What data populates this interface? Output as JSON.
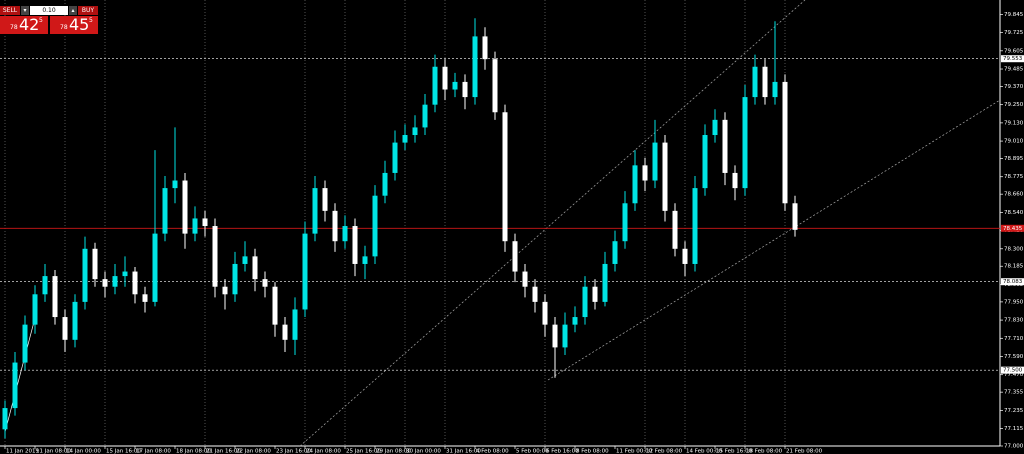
{
  "trade_panel": {
    "sell": "SELL",
    "lot": "0.10",
    "buy": "BUY",
    "sell_small": "78",
    "sell_big": "42",
    "sell_sup": "5",
    "buy_small": "78",
    "buy_big": "45",
    "buy_sup": "5"
  },
  "chart_data": {
    "type": "candlestick",
    "up_color": "#00e5e5",
    "down_color": "#ffffff",
    "ylim": [
      77.0,
      79.94
    ],
    "yticks": [
      79.845,
      79.725,
      {
        "value": 79.605,
        "label": "79.605"
      },
      79.485,
      {
        "value": 79.37,
        "label": "79.370"
      },
      {
        "value": 79.25,
        "label": "79.250"
      },
      {
        "value": 79.13,
        "label": "79.130"
      },
      {
        "value": 79.01,
        "label": "79.010"
      },
      78.895,
      78.775,
      {
        "value": 78.66,
        "label": "78.660"
      },
      {
        "value": 78.54,
        "label": "78.540"
      },
      {
        "value": 78.42,
        "label": "78.420"
      },
      {
        "value": 78.3,
        "label": "78.300"
      },
      78.185,
      78.065,
      {
        "value": 77.95,
        "label": "77.950"
      },
      {
        "value": 77.83,
        "label": "77.830"
      },
      {
        "value": 77.71,
        "label": "77.710"
      },
      {
        "value": 77.59,
        "label": "77.590"
      },
      {
        "value": 77.47,
        "label": "77.470"
      },
      77.355,
      77.235,
      77.115,
      {
        "value": 77.0,
        "label": "77.000"
      }
    ],
    "price_lines": [
      {
        "value": 79.553,
        "label": "79.553",
        "color": "#ffffff"
      },
      {
        "value": 78.083,
        "label": "78.083",
        "color": "#ffffff"
      },
      {
        "value": 77.5,
        "label": "77.500",
        "color": "#ffffff"
      },
      {
        "value": 78.435,
        "label": "78.435",
        "color": "#d01818"
      }
    ],
    "categories": [
      "11 Jan 2019",
      null,
      null,
      "11 Jan 08:00",
      null,
      null,
      "14 Jan 00:00",
      null,
      null,
      null,
      "15 Jan 16:00",
      null,
      null,
      "17 Jan 08:00",
      null,
      null,
      null,
      "18 Jan 08:00",
      null,
      null,
      "21 Jan 16:00",
      null,
      null,
      "22 Jan 08:00",
      null,
      null,
      null,
      "23 Jan 16:00",
      null,
      null,
      "24 Jan 08:00",
      null,
      null,
      null,
      "25 Jan 16:00",
      null,
      null,
      "29 Jan 08:00",
      null,
      null,
      "30 Jan 00:00",
      null,
      null,
      null,
      "31 Jan 16:00",
      null,
      null,
      "4 Feb 08:00",
      null,
      null,
      null,
      "5 Feb 00:00",
      null,
      null,
      "6 Feb 16:00",
      null,
      null,
      "8 Feb 08:00",
      null,
      null,
      null,
      "11 Feb 00:00",
      null,
      null,
      "12 Feb 08:00",
      null,
      null,
      null,
      "14 Feb 00:00",
      null,
      null,
      "15 Feb 16:00",
      null,
      null,
      "18 Feb 08:00",
      null,
      null,
      null,
      "21 Feb 08:00",
      null
    ],
    "ohlc": [
      [
        77.11,
        77.3,
        77.05,
        77.25
      ],
      [
        77.25,
        77.62,
        77.2,
        77.55
      ],
      [
        77.55,
        77.86,
        77.5,
        77.8
      ],
      [
        77.8,
        78.06,
        77.74,
        78.0
      ],
      [
        78.0,
        78.2,
        77.95,
        78.12
      ],
      [
        78.12,
        78.16,
        77.8,
        77.85
      ],
      [
        77.85,
        77.9,
        77.62,
        77.7
      ],
      [
        77.7,
        78.0,
        77.65,
        77.95
      ],
      [
        77.95,
        78.38,
        77.9,
        78.3
      ],
      [
        78.3,
        78.34,
        78.05,
        78.1
      ],
      [
        78.1,
        78.15,
        77.98,
        78.05
      ],
      [
        78.05,
        78.2,
        78.0,
        78.12
      ],
      [
        78.12,
        78.25,
        78.05,
        78.15
      ],
      [
        78.15,
        78.18,
        77.94,
        78.0
      ],
      [
        78.0,
        78.05,
        77.88,
        77.95
      ],
      [
        77.95,
        78.95,
        77.92,
        78.4
      ],
      [
        78.4,
        78.78,
        78.35,
        78.7
      ],
      [
        78.7,
        79.1,
        78.6,
        78.75
      ],
      [
        78.75,
        78.8,
        78.3,
        78.4
      ],
      [
        78.4,
        78.58,
        78.35,
        78.5
      ],
      [
        78.5,
        78.55,
        78.38,
        78.45
      ],
      [
        78.45,
        78.5,
        77.98,
        78.05
      ],
      [
        78.05,
        78.1,
        77.9,
        78.0
      ],
      [
        78.0,
        78.28,
        77.95,
        78.2
      ],
      [
        78.2,
        78.35,
        78.15,
        78.25
      ],
      [
        78.25,
        78.3,
        78.02,
        78.1
      ],
      [
        78.1,
        78.15,
        77.98,
        78.05
      ],
      [
        78.05,
        78.08,
        77.72,
        77.8
      ],
      [
        77.8,
        77.85,
        77.62,
        77.7
      ],
      [
        77.7,
        77.98,
        77.6,
        77.9
      ],
      [
        77.9,
        78.48,
        77.85,
        78.4
      ],
      [
        78.4,
        78.78,
        78.35,
        78.7
      ],
      [
        78.7,
        78.75,
        78.48,
        78.55
      ],
      [
        78.55,
        78.6,
        78.28,
        78.35
      ],
      [
        78.35,
        78.52,
        78.3,
        78.45
      ],
      [
        78.45,
        78.5,
        78.12,
        78.2
      ],
      [
        78.2,
        78.32,
        78.1,
        78.25
      ],
      [
        78.25,
        78.72,
        78.2,
        78.65
      ],
      [
        78.65,
        78.88,
        78.6,
        78.8
      ],
      [
        78.8,
        79.08,
        78.75,
        79.0
      ],
      [
        79.0,
        79.12,
        78.95,
        79.05
      ],
      [
        79.05,
        79.18,
        79.0,
        79.1
      ],
      [
        79.1,
        79.32,
        79.05,
        79.25
      ],
      [
        79.25,
        79.58,
        79.2,
        79.5
      ],
      [
        79.5,
        79.55,
        79.28,
        79.35
      ],
      [
        79.35,
        79.46,
        79.3,
        79.4
      ],
      [
        79.4,
        79.45,
        79.22,
        79.3
      ],
      [
        79.3,
        79.82,
        79.25,
        79.7
      ],
      [
        79.7,
        79.76,
        79.48,
        79.55
      ],
      [
        79.55,
        79.6,
        79.15,
        79.2
      ],
      [
        79.2,
        79.25,
        78.28,
        78.35
      ],
      [
        78.35,
        78.4,
        78.08,
        78.15
      ],
      [
        78.15,
        78.2,
        77.98,
        78.05
      ],
      [
        78.05,
        78.1,
        77.88,
        77.95
      ],
      [
        77.95,
        78.0,
        77.72,
        77.8
      ],
      [
        77.8,
        77.85,
        77.45,
        77.65
      ],
      [
        77.65,
        77.88,
        77.6,
        77.8
      ],
      [
        77.8,
        77.92,
        77.75,
        77.85
      ],
      [
        77.85,
        78.12,
        77.8,
        78.05
      ],
      [
        78.05,
        78.1,
        77.9,
        77.95
      ],
      [
        77.95,
        78.28,
        77.92,
        78.2
      ],
      [
        78.2,
        78.42,
        78.15,
        78.35
      ],
      [
        78.35,
        78.68,
        78.3,
        78.6
      ],
      [
        78.6,
        78.95,
        78.55,
        78.85
      ],
      [
        78.85,
        78.9,
        78.68,
        78.75
      ],
      [
        78.75,
        79.15,
        78.7,
        79.0
      ],
      [
        79.0,
        79.05,
        78.48,
        78.55
      ],
      [
        78.55,
        78.6,
        78.25,
        78.3
      ],
      [
        78.3,
        78.35,
        78.12,
        78.2
      ],
      [
        78.2,
        78.78,
        78.15,
        78.7
      ],
      [
        78.7,
        79.12,
        78.65,
        79.05
      ],
      [
        79.05,
        79.22,
        79.0,
        79.15
      ],
      [
        79.15,
        79.2,
        78.72,
        78.8
      ],
      [
        78.8,
        78.85,
        78.62,
        78.7
      ],
      [
        78.7,
        79.38,
        78.65,
        79.3
      ],
      [
        79.3,
        79.58,
        79.25,
        79.5
      ],
      [
        79.5,
        79.55,
        79.25,
        79.3
      ],
      [
        79.3,
        79.8,
        79.25,
        79.4
      ],
      [
        79.4,
        79.45,
        78.55,
        78.6
      ],
      [
        78.6,
        78.65,
        78.38,
        78.425
      ]
    ]
  }
}
